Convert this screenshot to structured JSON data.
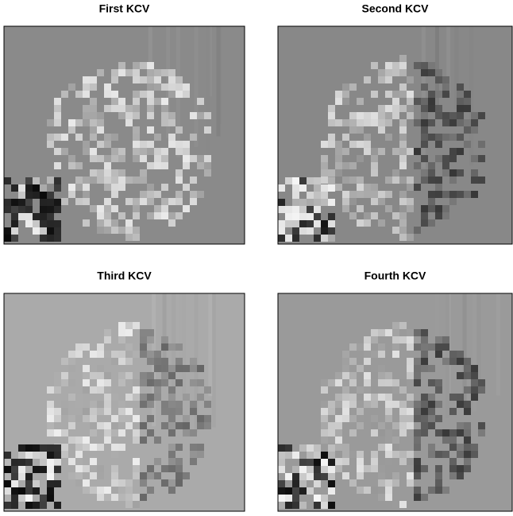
{
  "panels": [
    {
      "title": "First KCV"
    },
    {
      "title": "Second KCV"
    },
    {
      "title": "Third KCV"
    },
    {
      "title": "Fourth KCV"
    }
  ]
}
